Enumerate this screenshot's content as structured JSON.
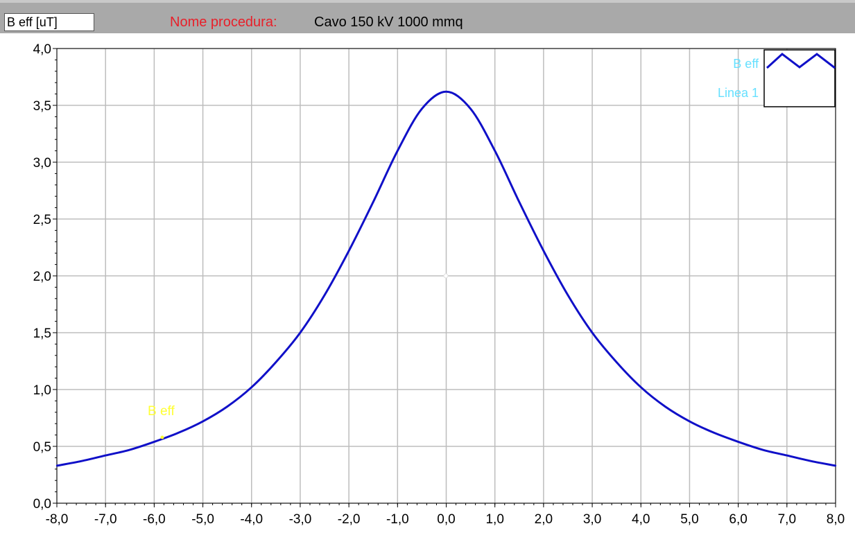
{
  "header": {
    "unit": "B eff [uT]",
    "procedure_label": "Nome procedura:",
    "procedure_name": "Cavo 150 kV 1000 mmq"
  },
  "colors": {
    "curve": "#1010c8",
    "grid": "#bdbdbd",
    "legend_text": "#66e0ff",
    "cursor_label": "#ffff33"
  },
  "chart_data": {
    "type": "line",
    "title": "",
    "xlabel": "",
    "ylabel": "B eff [uT]",
    "xlim": [
      -8.0,
      8.0
    ],
    "ylim": [
      0.0,
      4.0
    ],
    "x_ticks": [
      "-8,0",
      "-7,0",
      "-6,0",
      "-5,0",
      "-4,0",
      "-3,0",
      "-2,0",
      "-1,0",
      "0,0",
      "1,0",
      "2,0",
      "3,0",
      "4,0",
      "5,0",
      "6,0",
      "7,0",
      "8,0"
    ],
    "y_ticks": [
      "0,0",
      "0,5",
      "1,0",
      "1,5",
      "2,0",
      "2,5",
      "3,0",
      "3,5",
      "4,0"
    ],
    "grid": true,
    "legend_position": "top-right",
    "legend": [
      "B eff",
      "Linea 1"
    ],
    "cursor_label": "B eff",
    "series": [
      {
        "name": "B eff",
        "x": [
          -8,
          -7.5,
          -7,
          -6.5,
          -6,
          -5.5,
          -5,
          -4.5,
          -4,
          -3.5,
          -3,
          -2.5,
          -2,
          -1.5,
          -1,
          -0.5,
          0,
          0.5,
          1,
          1.5,
          2,
          2.5,
          3,
          3.5,
          4,
          4.5,
          5,
          5.5,
          6,
          6.5,
          7,
          7.5,
          8
        ],
        "values": [
          0.33,
          0.37,
          0.42,
          0.47,
          0.54,
          0.62,
          0.72,
          0.85,
          1.02,
          1.24,
          1.5,
          1.83,
          2.22,
          2.65,
          3.1,
          3.47,
          3.62,
          3.47,
          3.1,
          2.65,
          2.22,
          1.83,
          1.5,
          1.24,
          1.02,
          0.85,
          0.72,
          0.62,
          0.54,
          0.47,
          0.42,
          0.37,
          0.33
        ]
      }
    ]
  }
}
